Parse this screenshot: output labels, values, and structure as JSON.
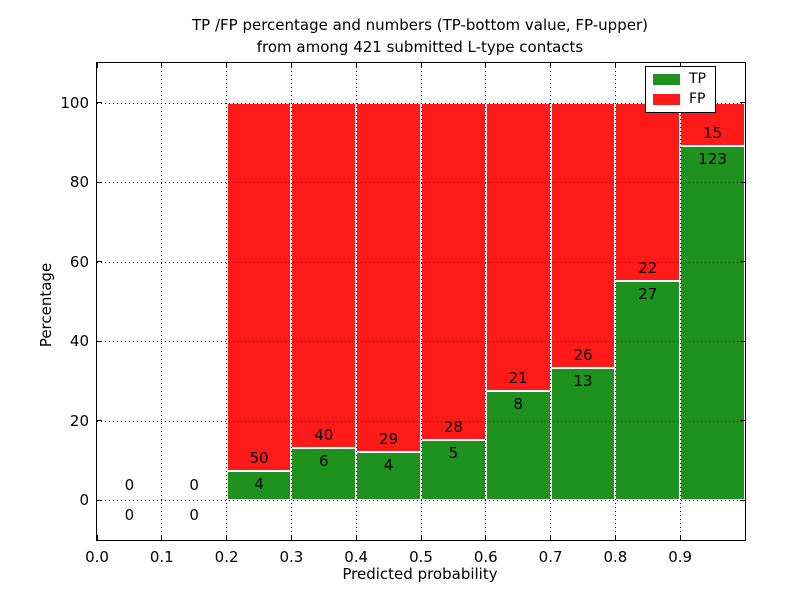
{
  "figure": {
    "title_line1": "TP /FP percentage and numbers (TP-bottom value, FP-upper)",
    "title_line2": "from among 421 submitted L-type contacts",
    "xlabel": "Predicted probability",
    "ylabel": "Percentage"
  },
  "colors": {
    "tp": "#1e911e",
    "fp": "#ff1a1a",
    "grid": "#000000",
    "background": "#ffffff"
  },
  "legend": {
    "position": "upper right",
    "items": [
      {
        "label": "TP",
        "color": "#1e911e"
      },
      {
        "label": "FP",
        "color": "#ff1a1a"
      }
    ]
  },
  "chart_data": {
    "type": "bar",
    "stacked": true,
    "title": "TP /FP percentage and numbers (TP-bottom value, FP-upper) from among 421 submitted L-type contacts",
    "xlabel": "Predicted probability",
    "ylabel": "Percentage",
    "xlim": [
      0.0,
      1.0
    ],
    "ylim": [
      -10,
      110
    ],
    "grid": "dotted black, on top of bars",
    "legend_position": "upper right",
    "total_contacts": 421,
    "xticks": [
      0.0,
      0.1,
      0.2,
      0.3,
      0.4,
      0.5,
      0.6,
      0.7,
      0.8,
      0.9
    ],
    "xtick_labels": [
      "0.0",
      "0.1",
      "0.2",
      "0.3",
      "0.4",
      "0.5",
      "0.6",
      "0.7",
      "0.8",
      "0.9"
    ],
    "yticks": [
      0,
      20,
      40,
      60,
      80,
      100
    ],
    "ytick_labels": [
      "0",
      "20",
      "40",
      "60",
      "80",
      "100"
    ],
    "series": [
      {
        "name": "TP",
        "role": "bottom segment, green"
      },
      {
        "name": "FP",
        "role": "upper segment, red"
      }
    ],
    "bins": [
      {
        "range": [
          0.0,
          0.1
        ],
        "tp": 0,
        "fp": 0,
        "tp_pct": 0,
        "fp_pct": 0
      },
      {
        "range": [
          0.1,
          0.2
        ],
        "tp": 0,
        "fp": 0,
        "tp_pct": 0,
        "fp_pct": 0
      },
      {
        "range": [
          0.2,
          0.3
        ],
        "tp": 4,
        "fp": 50,
        "tp_pct": 7.41,
        "fp_pct": 92.59
      },
      {
        "range": [
          0.3,
          0.4
        ],
        "tp": 6,
        "fp": 40,
        "tp_pct": 13.04,
        "fp_pct": 86.96
      },
      {
        "range": [
          0.4,
          0.5
        ],
        "tp": 4,
        "fp": 29,
        "tp_pct": 12.12,
        "fp_pct": 87.88
      },
      {
        "range": [
          0.5,
          0.6
        ],
        "tp": 5,
        "fp": 28,
        "tp_pct": 15.15,
        "fp_pct": 84.85
      },
      {
        "range": [
          0.6,
          0.7
        ],
        "tp": 8,
        "fp": 21,
        "tp_pct": 27.59,
        "fp_pct": 72.41
      },
      {
        "range": [
          0.7,
          0.8
        ],
        "tp": 13,
        "fp": 26,
        "tp_pct": 33.33,
        "fp_pct": 66.67
      },
      {
        "range": [
          0.8,
          0.9
        ],
        "tp": 27,
        "fp": 22,
        "tp_pct": 55.1,
        "fp_pct": 44.9
      },
      {
        "range": [
          0.9,
          1.0
        ],
        "tp": 123,
        "fp": 15,
        "tp_pct": 89.13,
        "fp_pct": 10.87
      }
    ]
  }
}
